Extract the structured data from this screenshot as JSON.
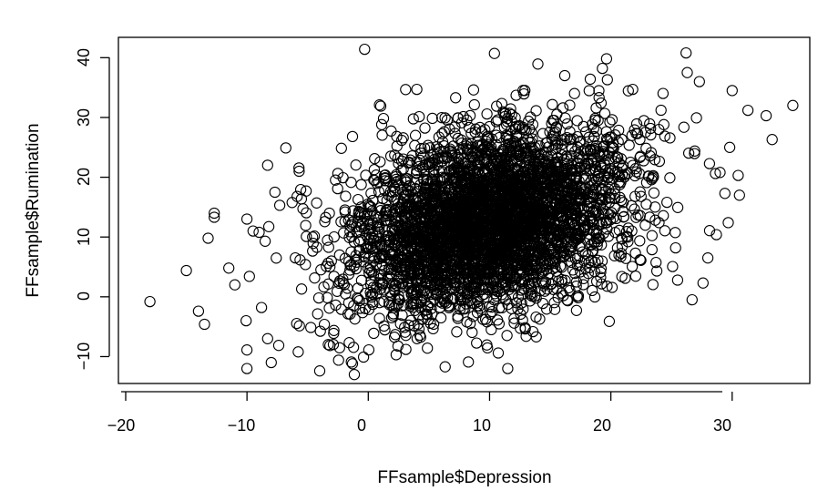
{
  "chart_data": {
    "type": "scatter",
    "title": "",
    "xlabel": "FFsample$Depression",
    "ylabel": "FFsample$Rumination",
    "xlim": [
      -20.6,
      36.4
    ],
    "ylim": [
      -14.5,
      43.4
    ],
    "x_ticks": [
      -20,
      -10,
      0,
      10,
      20,
      30
    ],
    "y_ticks": [
      -10,
      0,
      10,
      20,
      30,
      40
    ],
    "x_tick_labels": [
      "−20",
      "−10",
      "0",
      "10",
      "20",
      "30"
    ],
    "y_tick_labels": [
      "−10",
      "0",
      "10",
      "20",
      "30",
      "40"
    ],
    "marker": "open-circle",
    "color": "#000000",
    "grid": false,
    "legend": "none",
    "series": [
      {
        "sample_size": 4000,
        "x_mean": 10.0,
        "x_sd": 5.8,
        "y_mean": 12.5,
        "y_sd": 7.8,
        "correlation": 0.35,
        "visible_outliers": [
          [
            -18.0,
            -0.8
          ],
          [
            -15.0,
            4.4
          ],
          [
            -14.0,
            -2.4
          ],
          [
            -13.5,
            -4.6
          ],
          [
            -12.7,
            14.0
          ],
          [
            -12.7,
            13.3
          ],
          [
            -13.2,
            9.8
          ],
          [
            -11.5,
            4.8
          ],
          [
            -11.0,
            2.0
          ],
          [
            -10.0,
            13.0
          ],
          [
            -10.0,
            -12.0
          ],
          [
            -10.0,
            -8.9
          ],
          [
            -9.5,
            11.0
          ],
          [
            -9.0,
            10.8
          ],
          [
            -8.5,
            9.3
          ],
          [
            -8.8,
            -1.8
          ],
          [
            -8.3,
            -7.0
          ],
          [
            -8.0,
            -11.0
          ],
          [
            -8.3,
            22.0
          ],
          [
            -7.7,
            17.5
          ],
          [
            -7.3,
            15.3
          ],
          [
            -6.8,
            24.9
          ],
          [
            -5.7,
            21.0
          ],
          [
            -4.0,
            -12.4
          ],
          [
            -3.3,
            -8.0
          ],
          [
            -1.3,
            26.8
          ],
          [
            -1.3,
            -11.2
          ],
          [
            -1.4,
            -10.9
          ],
          [
            -0.3,
            41.4
          ],
          [
            1.1,
            28.8
          ],
          [
            3.1,
            -8.8
          ],
          [
            4.0,
            34.7
          ],
          [
            7.2,
            33.3
          ],
          [
            10.4,
            40.7
          ],
          [
            11.5,
            -12.0
          ],
          [
            16.2,
            37.0
          ],
          [
            17.0,
            34.0
          ],
          [
            18.3,
            36.4
          ],
          [
            19.3,
            38.2
          ],
          [
            21.8,
            34.7
          ],
          [
            26.2,
            40.8
          ],
          [
            26.3,
            37.5
          ],
          [
            27.3,
            36.0
          ],
          [
            30.0,
            34.5
          ],
          [
            31.3,
            31.2
          ],
          [
            32.8,
            30.3
          ],
          [
            33.3,
            26.3
          ],
          [
            35.0,
            32.0
          ],
          [
            30.5,
            20.3
          ],
          [
            30.6,
            17.0
          ],
          [
            29.8,
            25.0
          ],
          [
            29.4,
            17.3
          ],
          [
            29.0,
            20.8
          ],
          [
            28.7,
            10.4
          ],
          [
            28.0,
            6.5
          ],
          [
            27.6,
            2.3
          ],
          [
            26.7,
            -0.5
          ],
          [
            25.5,
            2.8
          ]
        ]
      }
    ]
  }
}
